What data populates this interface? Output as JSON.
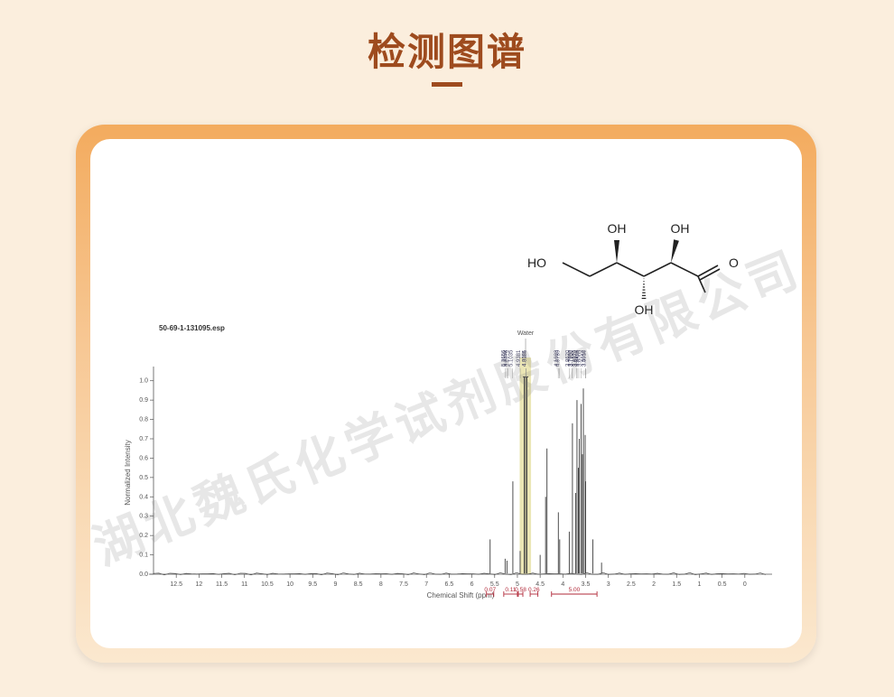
{
  "title": "检测图谱",
  "watermark": "湖北魏氏化学试剂股份有限公司",
  "molecule": {
    "labels": [
      "OH",
      "OH",
      "HO",
      "OH",
      "O"
    ]
  },
  "spectrum": {
    "type": "nmr-1d",
    "file_label": "50-69-1-131095.esp",
    "annotation": "Water",
    "x_axis_label": "Chemical Shift (ppm)",
    "y_axis_label": "Normalized Intensity",
    "xlim": [
      13.0,
      -0.5
    ],
    "x_ticks": [
      12.5,
      12.0,
      11.5,
      11.0,
      10.5,
      10.0,
      9.5,
      9.0,
      8.5,
      8.0,
      7.5,
      7.0,
      6.5,
      6.0,
      5.5,
      5.0,
      4.5,
      4.0,
      3.5,
      3.0,
      2.5,
      2.0,
      1.5,
      1.0,
      0.5,
      0
    ],
    "ylim": [
      0.0,
      1.05
    ],
    "y_ticks": [
      0,
      0.1,
      0.2,
      0.3,
      0.4,
      0.5,
      0.6,
      0.7,
      0.8,
      0.9,
      1.0
    ],
    "baseline_color": "#555555",
    "peak_color": "#3b3b3b",
    "highlight_band": {
      "x_from": 4.95,
      "x_to": 4.7,
      "color": "rgba(210,200,90,0.45)"
    },
    "peak_labels": [
      "5.2656",
      "5.2352",
      "5.2076",
      "5.1035",
      "4.9381",
      "4.8116",
      "4.8081",
      "4.1023",
      "4.0739",
      "3.8620",
      "3.7932",
      "3.7900",
      "3.6970",
      "3.6872",
      "3.6495",
      "3.6005",
      "3.5016",
      "3.4957"
    ],
    "peaks": [
      {
        "ppm": 5.6,
        "h": 0.18
      },
      {
        "ppm": 5.27,
        "h": 0.08
      },
      {
        "ppm": 5.23,
        "h": 0.07
      },
      {
        "ppm": 5.1,
        "h": 0.48
      },
      {
        "ppm": 4.94,
        "h": 0.12
      },
      {
        "ppm": 4.85,
        "h": 1.02
      },
      {
        "ppm": 4.82,
        "h": 1.02
      },
      {
        "ppm": 4.79,
        "h": 1.02
      },
      {
        "ppm": 4.5,
        "h": 0.1
      },
      {
        "ppm": 4.38,
        "h": 0.4
      },
      {
        "ppm": 4.35,
        "h": 0.65
      },
      {
        "ppm": 4.1,
        "h": 0.32
      },
      {
        "ppm": 4.07,
        "h": 0.18
      },
      {
        "ppm": 3.86,
        "h": 0.22
      },
      {
        "ppm": 3.79,
        "h": 0.78
      },
      {
        "ppm": 3.72,
        "h": 0.42
      },
      {
        "ppm": 3.69,
        "h": 0.9
      },
      {
        "ppm": 3.66,
        "h": 0.55
      },
      {
        "ppm": 3.64,
        "h": 0.7
      },
      {
        "ppm": 3.6,
        "h": 0.88
      },
      {
        "ppm": 3.57,
        "h": 0.62
      },
      {
        "ppm": 3.55,
        "h": 0.96
      },
      {
        "ppm": 3.51,
        "h": 0.72
      },
      {
        "ppm": 3.5,
        "h": 0.48
      },
      {
        "ppm": 3.34,
        "h": 0.18
      },
      {
        "ppm": 3.15,
        "h": 0.06
      }
    ],
    "integrals": [
      {
        "from": 5.68,
        "to": 5.52,
        "value": "0.07"
      },
      {
        "from": 5.3,
        "to": 5.0,
        "value": "0.11"
      },
      {
        "from": 4.98,
        "to": 4.88,
        "value": "0.58"
      },
      {
        "from": 4.72,
        "to": 4.55,
        "value": "0.26"
      },
      {
        "from": 4.25,
        "to": 3.25,
        "value": "5.00"
      }
    ],
    "integral_color": "#b22a3a",
    "background_color": "#ffffff",
    "axis_fontsize": 8,
    "tick_fontsize": 7
  }
}
